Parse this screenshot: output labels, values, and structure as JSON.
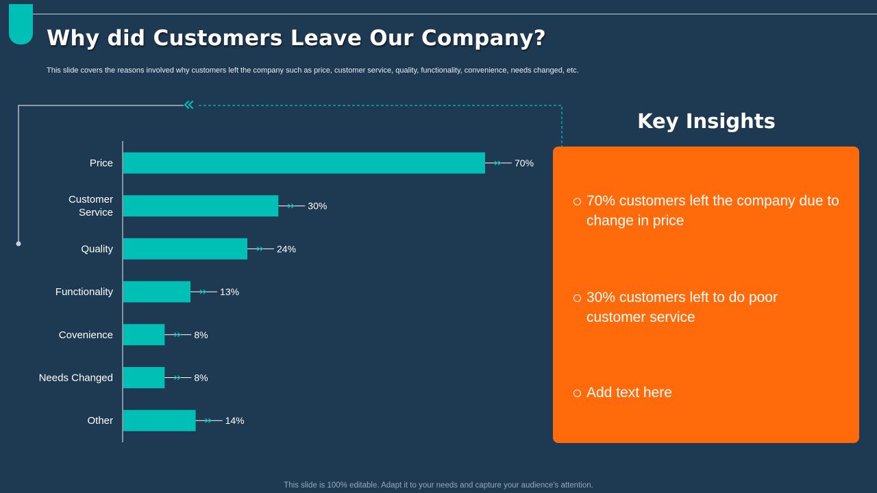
{
  "header": {
    "title": "Why did Customers Leave Our Company?",
    "subtitle": "This slide covers the reasons involved why customers left the company  such as price, customer service, quality, functionality,  convenience,  needs changed,  etc."
  },
  "chart_data": {
    "type": "bar",
    "orientation": "horizontal",
    "categories": [
      "Price",
      "Customer Service",
      "Quality",
      "Functionality",
      "Covenience",
      "Needs Changed",
      "Other"
    ],
    "category_lines": [
      [
        "Price"
      ],
      [
        "Customer",
        "Service"
      ],
      [
        "Quality"
      ],
      [
        "Functionality"
      ],
      [
        "Covenience"
      ],
      [
        "Needs Changed"
      ],
      [
        "Other"
      ]
    ],
    "values": [
      70,
      30,
      24,
      13,
      8,
      8,
      14
    ],
    "value_labels": [
      "70%",
      "30%",
      "24%",
      "13%",
      "8%",
      "8%",
      "14%"
    ],
    "value_unit": "%",
    "xlim": [
      0,
      70
    ],
    "title": "",
    "xlabel": "",
    "ylabel": "",
    "grid": false,
    "legend": "none"
  },
  "insights": {
    "heading": "Key Insights",
    "items": [
      "70% customers left the company due to change in price",
      "30% customers left to do poor customer service",
      "Add text here"
    ]
  },
  "footer": {
    "text": "This slide is 100% editable. Adapt it to your needs and capture your audience's attention."
  },
  "colors": {
    "background": "#1e3a52",
    "bar": "#00c0b5",
    "accent": "#00c0b5",
    "panel": "#ff6a0a",
    "text": "#ffffff"
  }
}
